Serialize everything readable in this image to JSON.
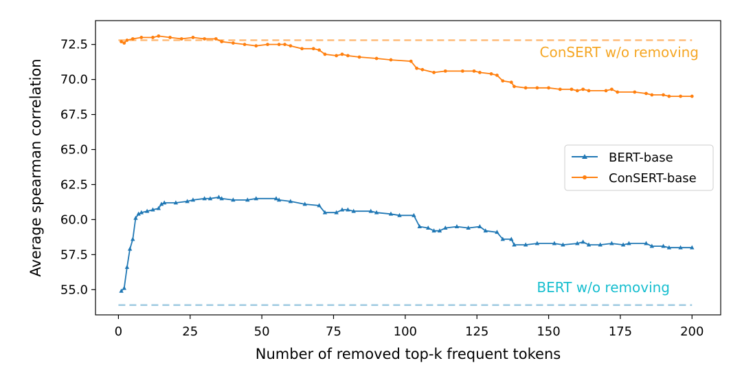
{
  "chart_data": {
    "type": "line",
    "title": "",
    "xlabel": "Number of removed top-k frequent tokens",
    "ylabel": "Average spearman correlation",
    "xlim": [
      -8,
      210
    ],
    "ylim": [
      53.2,
      74.2
    ],
    "xticks": [
      0,
      25,
      50,
      75,
      100,
      125,
      150,
      175,
      200
    ],
    "yticks": [
      55.0,
      57.5,
      60.0,
      62.5,
      65.0,
      67.5,
      70.0,
      72.5
    ],
    "grid": false,
    "legend_position": "center-right",
    "series": [
      {
        "name": "BERT-base",
        "color": "#1f77b4",
        "marker": "triangle",
        "points": [
          [
            1,
            54.9
          ],
          [
            2,
            55.1
          ],
          [
            3,
            56.6
          ],
          [
            4,
            57.9
          ],
          [
            5,
            58.6
          ],
          [
            6,
            60.1
          ],
          [
            7,
            60.4
          ],
          [
            8,
            60.5
          ],
          [
            10,
            60.6
          ],
          [
            12,
            60.7
          ],
          [
            14,
            60.8
          ],
          [
            15,
            61.1
          ],
          [
            16,
            61.2
          ],
          [
            20,
            61.2
          ],
          [
            24,
            61.3
          ],
          [
            26,
            61.4
          ],
          [
            30,
            61.5
          ],
          [
            32,
            61.5
          ],
          [
            35,
            61.6
          ],
          [
            36,
            61.5
          ],
          [
            40,
            61.4
          ],
          [
            45,
            61.4
          ],
          [
            48,
            61.5
          ],
          [
            55,
            61.5
          ],
          [
            56,
            61.4
          ],
          [
            60,
            61.3
          ],
          [
            65,
            61.1
          ],
          [
            70,
            61.0
          ],
          [
            72,
            60.5
          ],
          [
            76,
            60.5
          ],
          [
            78,
            60.7
          ],
          [
            80,
            60.7
          ],
          [
            82,
            60.6
          ],
          [
            88,
            60.6
          ],
          [
            90,
            60.5
          ],
          [
            95,
            60.4
          ],
          [
            98,
            60.3
          ],
          [
            103,
            60.3
          ],
          [
            105,
            59.5
          ],
          [
            108,
            59.4
          ],
          [
            110,
            59.2
          ],
          [
            112,
            59.2
          ],
          [
            114,
            59.4
          ],
          [
            118,
            59.5
          ],
          [
            122,
            59.4
          ],
          [
            126,
            59.5
          ],
          [
            128,
            59.2
          ],
          [
            132,
            59.1
          ],
          [
            134,
            58.6
          ],
          [
            137,
            58.6
          ],
          [
            138,
            58.2
          ],
          [
            142,
            58.2
          ],
          [
            146,
            58.3
          ],
          [
            152,
            58.3
          ],
          [
            155,
            58.2
          ],
          [
            160,
            58.3
          ],
          [
            162,
            58.4
          ],
          [
            164,
            58.2
          ],
          [
            168,
            58.2
          ],
          [
            172,
            58.3
          ],
          [
            176,
            58.2
          ],
          [
            178,
            58.3
          ],
          [
            184,
            58.3
          ],
          [
            186,
            58.1
          ],
          [
            190,
            58.1
          ],
          [
            192,
            58.0
          ],
          [
            196,
            58.0
          ],
          [
            200,
            58.0
          ]
        ]
      },
      {
        "name": "ConSERT-base",
        "color": "#ff7f0e",
        "marker": "circle",
        "points": [
          [
            1,
            72.7
          ],
          [
            2,
            72.6
          ],
          [
            3,
            72.8
          ],
          [
            5,
            72.9
          ],
          [
            8,
            73.0
          ],
          [
            12,
            73.0
          ],
          [
            14,
            73.1
          ],
          [
            18,
            73.0
          ],
          [
            22,
            72.9
          ],
          [
            26,
            73.0
          ],
          [
            30,
            72.9
          ],
          [
            34,
            72.9
          ],
          [
            36,
            72.7
          ],
          [
            40,
            72.6
          ],
          [
            44,
            72.5
          ],
          [
            48,
            72.4
          ],
          [
            52,
            72.5
          ],
          [
            56,
            72.5
          ],
          [
            58,
            72.5
          ],
          [
            60,
            72.4
          ],
          [
            64,
            72.2
          ],
          [
            68,
            72.2
          ],
          [
            70,
            72.1
          ],
          [
            72,
            71.8
          ],
          [
            76,
            71.7
          ],
          [
            78,
            71.8
          ],
          [
            80,
            71.7
          ],
          [
            84,
            71.6
          ],
          [
            90,
            71.5
          ],
          [
            95,
            71.4
          ],
          [
            102,
            71.3
          ],
          [
            104,
            70.8
          ],
          [
            106,
            70.7
          ],
          [
            110,
            70.5
          ],
          [
            114,
            70.6
          ],
          [
            120,
            70.6
          ],
          [
            124,
            70.6
          ],
          [
            126,
            70.5
          ],
          [
            130,
            70.4
          ],
          [
            132,
            70.3
          ],
          [
            134,
            69.9
          ],
          [
            137,
            69.8
          ],
          [
            138,
            69.5
          ],
          [
            142,
            69.4
          ],
          [
            146,
            69.4
          ],
          [
            150,
            69.4
          ],
          [
            154,
            69.3
          ],
          [
            158,
            69.3
          ],
          [
            160,
            69.2
          ],
          [
            162,
            69.3
          ],
          [
            164,
            69.2
          ],
          [
            170,
            69.2
          ],
          [
            172,
            69.3
          ],
          [
            174,
            69.1
          ],
          [
            180,
            69.1
          ],
          [
            184,
            69.0
          ],
          [
            186,
            68.9
          ],
          [
            190,
            68.9
          ],
          [
            192,
            68.8
          ],
          [
            196,
            68.8
          ],
          [
            200,
            68.8
          ]
        ]
      }
    ],
    "reference_lines": [
      {
        "label": "ConSERT w/o removing",
        "value": 72.8,
        "color": "#ffbb78",
        "text_color": "#f5a623"
      },
      {
        "label": "BERT w/o removing",
        "value": 53.9,
        "color": "#9ecae1",
        "text_color": "#17becf"
      }
    ]
  }
}
